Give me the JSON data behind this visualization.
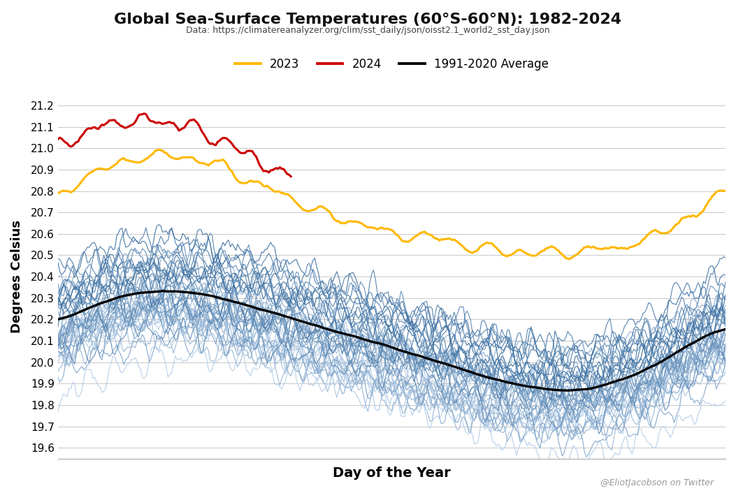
{
  "title": "Global Sea-Surface Temperatures (60°S-60°N): 1982-2024",
  "subtitle": "Data: https://climatereanalyzer.org/clim/sst_daily/json/oisst2.1_world2_sst_day.json",
  "xlabel": "Day of the Year",
  "ylabel": "Degrees Celsius",
  "watermark": "@EliotJacobson on Twitter",
  "ylim": [
    19.55,
    21.25
  ],
  "yticks": [
    19.6,
    19.7,
    19.8,
    19.9,
    20.0,
    20.1,
    20.2,
    20.3,
    20.4,
    20.5,
    20.6,
    20.7,
    20.8,
    20.9,
    21.0,
    21.1,
    21.2
  ],
  "xlim": [
    1,
    365
  ],
  "legend_colors": [
    "#FFB800",
    "#CC0000",
    "#000000"
  ],
  "background_color": "#FFFFFF",
  "grid_color": "#C8C8C8"
}
